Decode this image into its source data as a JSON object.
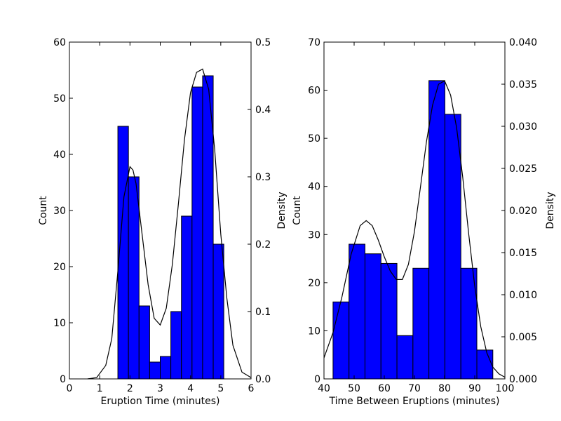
{
  "colors": {
    "bar": "#0000ff",
    "bar_edge": "#000000",
    "curve": "#000000",
    "background": "#ffffff"
  },
  "chart_data": [
    {
      "type": "bar",
      "subtype": "histogram_with_density",
      "xlabel": "Eruption Time (minutes)",
      "ylabel": "Count",
      "y2label": "Density",
      "xlim": [
        0,
        6
      ],
      "ylim": [
        0,
        60
      ],
      "y2lim": [
        0,
        0.5
      ],
      "x_ticks": [
        "0",
        "1",
        "2",
        "3",
        "4",
        "5",
        "6"
      ],
      "y_ticks": [
        "0",
        "10",
        "20",
        "30",
        "40",
        "50",
        "60"
      ],
      "y2_ticks": [
        "0.0",
        "0.1",
        "0.2",
        "0.3",
        "0.4",
        "0.5"
      ],
      "bins": [
        {
          "x0": 1.6,
          "x1": 1.95,
          "count": 45
        },
        {
          "x0": 1.95,
          "x1": 2.3,
          "count": 36
        },
        {
          "x0": 2.3,
          "x1": 2.65,
          "count": 13
        },
        {
          "x0": 2.65,
          "x1": 3.0,
          "count": 3
        },
        {
          "x0": 3.0,
          "x1": 3.35,
          "count": 4
        },
        {
          "x0": 3.35,
          "x1": 3.7,
          "count": 12
        },
        {
          "x0": 3.7,
          "x1": 4.05,
          "count": 29
        },
        {
          "x0": 4.05,
          "x1": 4.4,
          "count": 52
        },
        {
          "x0": 4.4,
          "x1": 4.75,
          "count": 54
        },
        {
          "x0": 4.75,
          "x1": 5.1,
          "count": 24
        }
      ],
      "density": {
        "x": [
          0.6,
          0.9,
          1.2,
          1.4,
          1.6,
          1.8,
          2.0,
          2.1,
          2.2,
          2.4,
          2.6,
          2.8,
          3.0,
          3.2,
          3.4,
          3.6,
          3.8,
          4.0,
          4.2,
          4.4,
          4.6,
          4.8,
          5.0,
          5.2,
          5.4,
          5.7,
          6.0
        ],
        "y": [
          0.0,
          0.002,
          0.02,
          0.06,
          0.16,
          0.27,
          0.315,
          0.31,
          0.29,
          0.215,
          0.14,
          0.09,
          0.08,
          0.105,
          0.17,
          0.26,
          0.355,
          0.425,
          0.455,
          0.46,
          0.43,
          0.34,
          0.215,
          0.12,
          0.05,
          0.01,
          0.002
        ]
      }
    },
    {
      "type": "bar",
      "subtype": "histogram_with_density",
      "xlabel": "Time Between Eruptions (minutes)",
      "ylabel": "Count",
      "y2label": "Density",
      "xlim": [
        40,
        100
      ],
      "ylim": [
        0,
        70
      ],
      "y2lim": [
        0,
        0.04
      ],
      "x_ticks": [
        "40",
        "50",
        "60",
        "70",
        "80",
        "90",
        "100"
      ],
      "y_ticks": [
        "0",
        "10",
        "20",
        "30",
        "40",
        "50",
        "60",
        "70"
      ],
      "y2_ticks": [
        "0.000",
        "0.005",
        "0.010",
        "0.015",
        "0.020",
        "0.025",
        "0.030",
        "0.035",
        "0.040"
      ],
      "bins": [
        {
          "x0": 43,
          "x1": 48.3,
          "count": 16
        },
        {
          "x0": 48.3,
          "x1": 53.6,
          "count": 28
        },
        {
          "x0": 53.6,
          "x1": 58.9,
          "count": 26
        },
        {
          "x0": 58.9,
          "x1": 64.2,
          "count": 24
        },
        {
          "x0": 64.2,
          "x1": 69.5,
          "count": 9
        },
        {
          "x0": 69.5,
          "x1": 74.8,
          "count": 23
        },
        {
          "x0": 74.8,
          "x1": 80.1,
          "count": 62
        },
        {
          "x0": 80.1,
          "x1": 85.4,
          "count": 55
        },
        {
          "x0": 85.4,
          "x1": 90.7,
          "count": 23
        },
        {
          "x0": 90.7,
          "x1": 96,
          "count": 6
        }
      ],
      "density": {
        "x": [
          40,
          43,
          46,
          49,
          52,
          54,
          56,
          58,
          60,
          62,
          64,
          66,
          68,
          70,
          72,
          74,
          76,
          78,
          80,
          82,
          84,
          86,
          88,
          90,
          92,
          94,
          96,
          98,
          100
        ],
        "y": [
          0.0025,
          0.0055,
          0.0098,
          0.0148,
          0.0182,
          0.0188,
          0.0182,
          0.0165,
          0.0145,
          0.0128,
          0.0118,
          0.0118,
          0.0136,
          0.0175,
          0.0228,
          0.0282,
          0.0325,
          0.035,
          0.0354,
          0.0337,
          0.0298,
          0.024,
          0.0172,
          0.011,
          0.0062,
          0.0031,
          0.0014,
          0.0006,
          0.0002
        ]
      }
    }
  ]
}
